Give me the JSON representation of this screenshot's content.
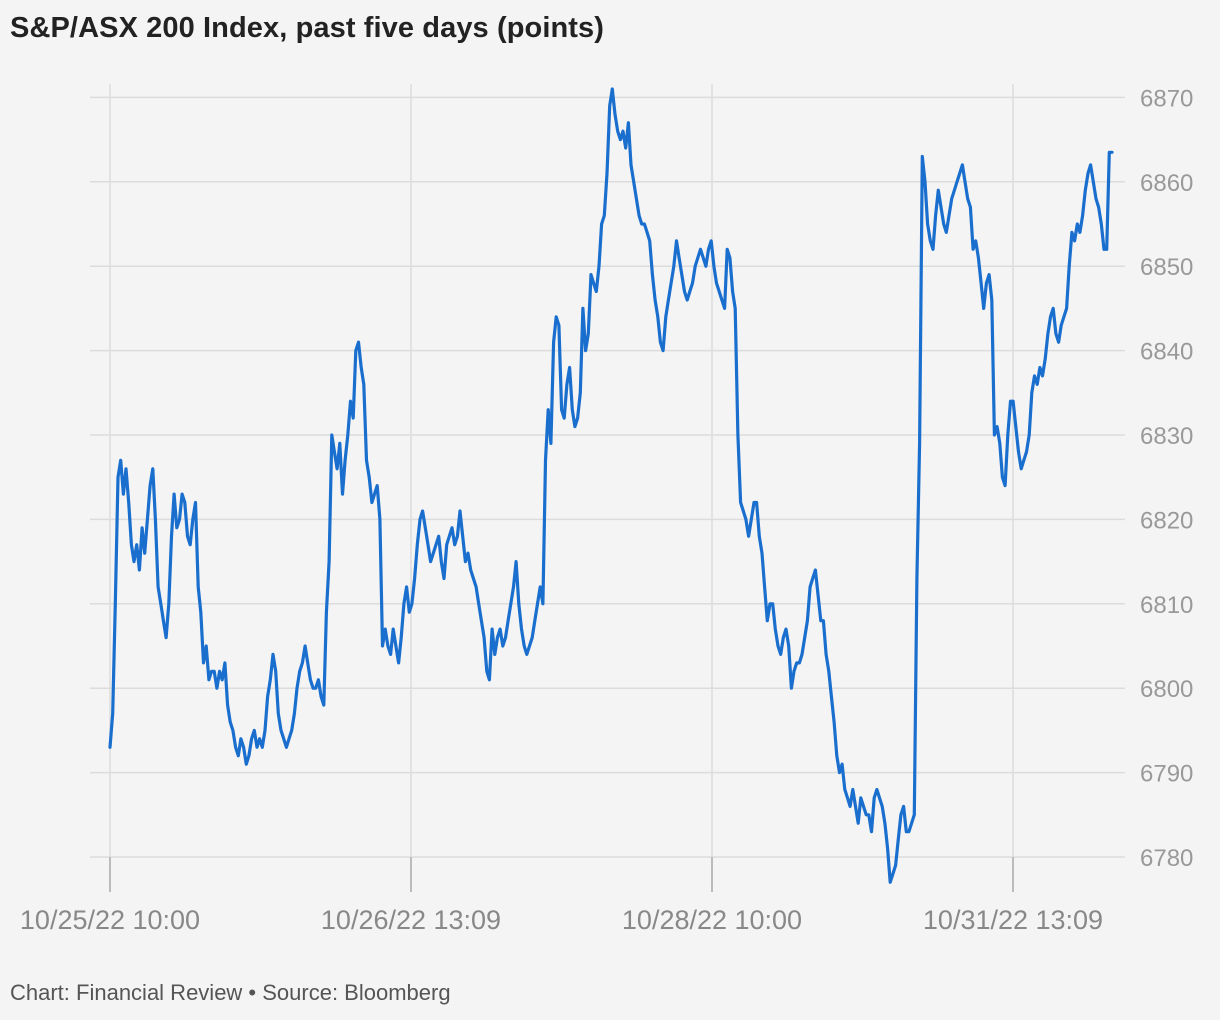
{
  "chart_data": {
    "type": "line",
    "title": "S&P/ASX 200 Index, past five days (points)",
    "source": "Chart: Financial Review • Source: Bloomberg",
    "y_ticks": [
      6780,
      6790,
      6800,
      6810,
      6820,
      6830,
      6840,
      6850,
      6860,
      6870
    ],
    "x_tick_labels": [
      "10/25/22 10:00",
      "10/26/22 13:09",
      "10/28/22 10:00",
      "10/31/22 13:09"
    ],
    "ylim": [
      6775.5,
      6872
    ],
    "grid": true,
    "line_color": "#1a6fce",
    "series": [
      {
        "values": [
          6793,
          6797,
          6810,
          6825,
          6827,
          6823,
          6826,
          6822,
          6817,
          6815,
          6817,
          6814,
          6819,
          6816,
          6820,
          6824,
          6826,
          6820,
          6812,
          6810,
          6808,
          6806,
          6810,
          6818,
          6823,
          6819,
          6820,
          6823,
          6822,
          6818,
          6817,
          6820,
          6822,
          6812,
          6809,
          6803,
          6805,
          6801,
          6802,
          6802,
          6800,
          6802,
          6801,
          6803,
          6798,
          6796,
          6795,
          6793,
          6792,
          6794,
          6793,
          6791,
          6792,
          6794,
          6795,
          6793,
          6794,
          6793,
          6795,
          6799,
          6801,
          6804,
          6802,
          6797,
          6795,
          6794,
          6793,
          6794,
          6795,
          6797,
          6800,
          6802,
          6803,
          6805,
          6803,
          6801,
          6800,
          6800,
          6801,
          6799,
          6798,
          6809,
          6815,
          6830,
          6828,
          6826,
          6829,
          6823,
          6827,
          6830,
          6834,
          6832,
          6840,
          6841,
          6838,
          6836,
          6827,
          6825,
          6822,
          6823,
          6824,
          6820,
          6805,
          6807,
          6805,
          6804,
          6807,
          6805,
          6803,
          6806,
          6810,
          6812,
          6809,
          6810,
          6813,
          6817,
          6820,
          6821,
          6819,
          6817,
          6815,
          6816,
          6817,
          6818,
          6815,
          6813,
          6817,
          6818,
          6819,
          6817,
          6818,
          6821,
          6818,
          6815,
          6816,
          6814,
          6813,
          6812,
          6810,
          6808,
          6806,
          6802,
          6801,
          6807,
          6804,
          6806,
          6807,
          6805,
          6806,
          6808,
          6810,
          6812,
          6815,
          6810,
          6807,
          6805,
          6804,
          6805,
          6806,
          6808,
          6810,
          6812,
          6810,
          6827,
          6833,
          6829,
          6841,
          6844,
          6843,
          6833,
          6832,
          6836,
          6838,
          6833,
          6831,
          6832,
          6835,
          6845,
          6840,
          6842,
          6849,
          6848,
          6847,
          6850,
          6855,
          6856,
          6861,
          6869,
          6871,
          6868,
          6866,
          6865,
          6866,
          6864,
          6867,
          6862,
          6860,
          6858,
          6856,
          6855,
          6855,
          6854,
          6853,
          6849,
          6846,
          6844,
          6841,
          6840,
          6844,
          6846,
          6848,
          6850,
          6853,
          6851,
          6849,
          6847,
          6846,
          6847,
          6848,
          6850,
          6851,
          6852,
          6851,
          6850,
          6852,
          6853,
          6850,
          6848,
          6847,
          6846,
          6845,
          6852,
          6851,
          6847,
          6845,
          6830,
          6822,
          6821,
          6820,
          6818,
          6820,
          6822,
          6822,
          6818,
          6816,
          6812,
          6808,
          6810,
          6810,
          6807,
          6805,
          6804,
          6806,
          6807,
          6805,
          6800,
          6802,
          6803,
          6803,
          6804,
          6806,
          6808,
          6812,
          6813,
          6814,
          6811,
          6808,
          6808,
          6804,
          6802,
          6799,
          6796,
          6792,
          6790,
          6791,
          6788,
          6787,
          6786,
          6788,
          6786,
          6784,
          6787,
          6786,
          6785,
          6785,
          6783,
          6787,
          6788,
          6787,
          6786,
          6784,
          6781,
          6777,
          6778,
          6779,
          6782,
          6785,
          6786,
          6783,
          6783,
          6784,
          6785,
          6813,
          6829,
          6863,
          6860,
          6855,
          6853,
          6852,
          6856,
          6859,
          6857,
          6855,
          6854,
          6856,
          6858,
          6859,
          6860,
          6861,
          6862,
          6860,
          6858,
          6857,
          6852,
          6853,
          6851,
          6848,
          6845,
          6848,
          6849,
          6846,
          6830,
          6831,
          6829,
          6825,
          6824,
          6830,
          6834,
          6834,
          6831,
          6828,
          6826,
          6827,
          6828,
          6830,
          6835,
          6837,
          6836,
          6838,
          6837,
          6839,
          6842,
          6844,
          6845,
          6842,
          6841,
          6843,
          6844,
          6845,
          6850,
          6854,
          6853,
          6855,
          6854,
          6856,
          6859,
          6861,
          6862,
          6860,
          6858,
          6857,
          6855,
          6852,
          6852,
          6863.5,
          6863.5
        ]
      }
    ]
  }
}
